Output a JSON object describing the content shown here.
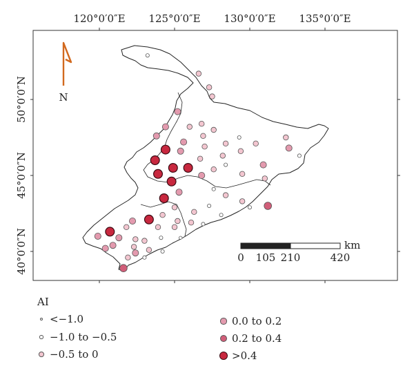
{
  "map": {
    "lon_ticks": [
      "120°0′0″E",
      "125°0′0″E",
      "130°0′0″E",
      "135°0′0″E"
    ],
    "lat_ticks": [
      "50°0′0″N",
      "45°0′0″N",
      "40°0′0″N"
    ],
    "north_label": "N",
    "scale": {
      "labels": [
        "0",
        "105",
        "210",
        "420"
      ],
      "unit": "km"
    },
    "colors": {
      "frame": "#333333",
      "arrow": "#d2691e",
      "boundary": "#222222",
      "lt_-1.0": "#ffffff",
      "-1.0_to_-0.5": "#ffffff",
      "-0.5_to_0": "#f3c6d0",
      "0.0_to_0.2": "#e39aae",
      "0.2_to_0.4": "#d15e79",
      "gt_0.4": "#c8283f"
    }
  },
  "legend": {
    "title": "AI",
    "items": [
      {
        "label": "<−1.0",
        "cls": "lt_-1.0"
      },
      {
        "label": "−1.0 to −0.5",
        "cls": "-1.0_to_-0.5"
      },
      {
        "label": "−0.5 to 0",
        "cls": "-0.5_to_0"
      },
      {
        "label": "0.0 to 0.2",
        "cls": "0.0_to_0.2"
      },
      {
        "label": "0.2 to 0.4",
        "cls": "0.2_to_0.4"
      },
      {
        "label": ">0.4",
        "cls": "gt_0.4"
      }
    ]
  },
  "stations": [
    {
      "lon": 123.2,
      "lat": 52.9,
      "cls": "-1.0_to_-0.5"
    },
    {
      "lon": 126.6,
      "lat": 51.7,
      "cls": "-0.5_to_0"
    },
    {
      "lon": 127.5,
      "lat": 50.2,
      "cls": "-0.5_to_0"
    },
    {
      "lon": 127.3,
      "lat": 50.8,
      "cls": "-0.5_to_0"
    },
    {
      "lon": 125.2,
      "lat": 49.2,
      "cls": "0.0_to_0.2"
    },
    {
      "lon": 126.0,
      "lat": 48.2,
      "cls": "-0.5_to_0"
    },
    {
      "lon": 126.8,
      "lat": 48.4,
      "cls": "-0.5_to_0"
    },
    {
      "lon": 127.6,
      "lat": 48.0,
      "cls": "-0.5_to_0"
    },
    {
      "lon": 124.4,
      "lat": 48.2,
      "cls": "0.0_to_0.2"
    },
    {
      "lon": 123.8,
      "lat": 47.6,
      "cls": "0.0_to_0.2"
    },
    {
      "lon": 125.6,
      "lat": 47.2,
      "cls": "0.0_to_0.2"
    },
    {
      "lon": 126.9,
      "lat": 47.6,
      "cls": "-0.5_to_0"
    },
    {
      "lon": 127.0,
      "lat": 46.9,
      "cls": "-0.5_to_0"
    },
    {
      "lon": 128.4,
      "lat": 47.1,
      "cls": "-0.5_to_0"
    },
    {
      "lon": 129.3,
      "lat": 47.5,
      "cls": "-1.0_to_-0.5"
    },
    {
      "lon": 130.4,
      "lat": 47.1,
      "cls": "-0.5_to_0"
    },
    {
      "lon": 132.4,
      "lat": 47.5,
      "cls": "-0.5_to_0"
    },
    {
      "lon": 132.6,
      "lat": 46.8,
      "cls": "0.0_to_0.2"
    },
    {
      "lon": 133.3,
      "lat": 46.3,
      "cls": "-1.0_to_-0.5"
    },
    {
      "lon": 125.4,
      "lat": 46.6,
      "cls": "0.0_to_0.2"
    },
    {
      "lon": 126.7,
      "lat": 46.1,
      "cls": "-0.5_to_0"
    },
    {
      "lon": 128.2,
      "lat": 46.3,
      "cls": "-0.5_to_0"
    },
    {
      "lon": 129.4,
      "lat": 46.6,
      "cls": "-0.5_to_0"
    },
    {
      "lon": 128.4,
      "lat": 45.7,
      "cls": "-1.0_to_-0.5"
    },
    {
      "lon": 130.9,
      "lat": 45.7,
      "cls": "0.0_to_0.2"
    },
    {
      "lon": 127.6,
      "lat": 45.4,
      "cls": "-0.5_to_0"
    },
    {
      "lon": 129.5,
      "lat": 45.1,
      "cls": "-0.5_to_0"
    },
    {
      "lon": 131.0,
      "lat": 44.8,
      "cls": "-0.5_to_0"
    },
    {
      "lon": 124.4,
      "lat": 46.7,
      "cls": "gt_0.4"
    },
    {
      "lon": 123.7,
      "lat": 46.0,
      "cls": "gt_0.4"
    },
    {
      "lon": 124.9,
      "lat": 45.5,
      "cls": "gt_0.4"
    },
    {
      "lon": 123.9,
      "lat": 45.1,
      "cls": "gt_0.4"
    },
    {
      "lon": 124.8,
      "lat": 44.6,
      "cls": "gt_0.4"
    },
    {
      "lon": 125.9,
      "lat": 45.5,
      "cls": "gt_0.4"
    },
    {
      "lon": 126.8,
      "lat": 45.0,
      "cls": "0.0_to_0.2"
    },
    {
      "lon": 125.3,
      "lat": 43.9,
      "cls": "0.0_to_0.2"
    },
    {
      "lon": 124.3,
      "lat": 43.5,
      "cls": "gt_0.4"
    },
    {
      "lon": 127.6,
      "lat": 44.1,
      "cls": "-1.0_to_-0.5"
    },
    {
      "lon": 128.4,
      "lat": 43.7,
      "cls": "-0.5_to_0"
    },
    {
      "lon": 129.5,
      "lat": 43.3,
      "cls": "-0.5_to_0"
    },
    {
      "lon": 127.3,
      "lat": 43.0,
      "cls": "-1.0_to_-0.5"
    },
    {
      "lon": 126.3,
      "lat": 42.6,
      "cls": "-0.5_to_0"
    },
    {
      "lon": 128.1,
      "lat": 42.4,
      "cls": "-1.0_to_-0.5"
    },
    {
      "lon": 130.0,
      "lat": 42.9,
      "cls": "-1.0_to_-0.5"
    },
    {
      "lon": 131.2,
      "lat": 43.0,
      "cls": "0.2_to_0.4"
    },
    {
      "lon": 125.0,
      "lat": 42.9,
      "cls": "-0.5_to_0"
    },
    {
      "lon": 124.2,
      "lat": 42.4,
      "cls": "-0.5_to_0"
    },
    {
      "lon": 125.2,
      "lat": 42.0,
      "cls": "-0.5_to_0"
    },
    {
      "lon": 126.1,
      "lat": 41.9,
      "cls": "-0.5_to_0"
    },
    {
      "lon": 126.9,
      "lat": 41.8,
      "cls": "-1.0_to_-0.5"
    },
    {
      "lon": 123.3,
      "lat": 42.1,
      "cls": "gt_0.4"
    },
    {
      "lon": 122.2,
      "lat": 42.0,
      "cls": "0.0_to_0.2"
    },
    {
      "lon": 121.8,
      "lat": 41.6,
      "cls": "-0.5_to_0"
    },
    {
      "lon": 123.9,
      "lat": 41.6,
      "cls": "-0.5_to_0"
    },
    {
      "lon": 125.0,
      "lat": 41.6,
      "cls": "-0.5_to_0"
    },
    {
      "lon": 120.7,
      "lat": 41.3,
      "cls": "gt_0.4"
    },
    {
      "lon": 119.9,
      "lat": 41.0,
      "cls": "0.0_to_0.2"
    },
    {
      "lon": 121.3,
      "lat": 40.9,
      "cls": "0.0_to_0.2"
    },
    {
      "lon": 122.4,
      "lat": 40.8,
      "cls": "-0.5_to_0"
    },
    {
      "lon": 123.0,
      "lat": 40.7,
      "cls": "-0.5_to_0"
    },
    {
      "lon": 124.1,
      "lat": 40.9,
      "cls": "-1.0_to_-0.5"
    },
    {
      "lon": 125.4,
      "lat": 40.9,
      "cls": "lt_-1.0"
    },
    {
      "lon": 122.3,
      "lat": 40.3,
      "cls": "-0.5_to_0"
    },
    {
      "lon": 120.9,
      "lat": 40.4,
      "cls": "0.0_to_0.2"
    },
    {
      "lon": 120.4,
      "lat": 40.2,
      "cls": "0.0_to_0.2"
    },
    {
      "lon": 122.4,
      "lat": 39.9,
      "cls": "0.0_to_0.2"
    },
    {
      "lon": 123.3,
      "lat": 40.1,
      "cls": "-0.5_to_0"
    },
    {
      "lon": 124.2,
      "lat": 40.0,
      "cls": "-1.0_to_-0.5"
    },
    {
      "lon": 121.9,
      "lat": 39.6,
      "cls": "-0.5_to_0"
    },
    {
      "lon": 123.0,
      "lat": 39.6,
      "cls": "-1.0_to_-0.5"
    },
    {
      "lon": 121.6,
      "lat": 38.9,
      "cls": "0.2_to_0.4"
    }
  ]
}
